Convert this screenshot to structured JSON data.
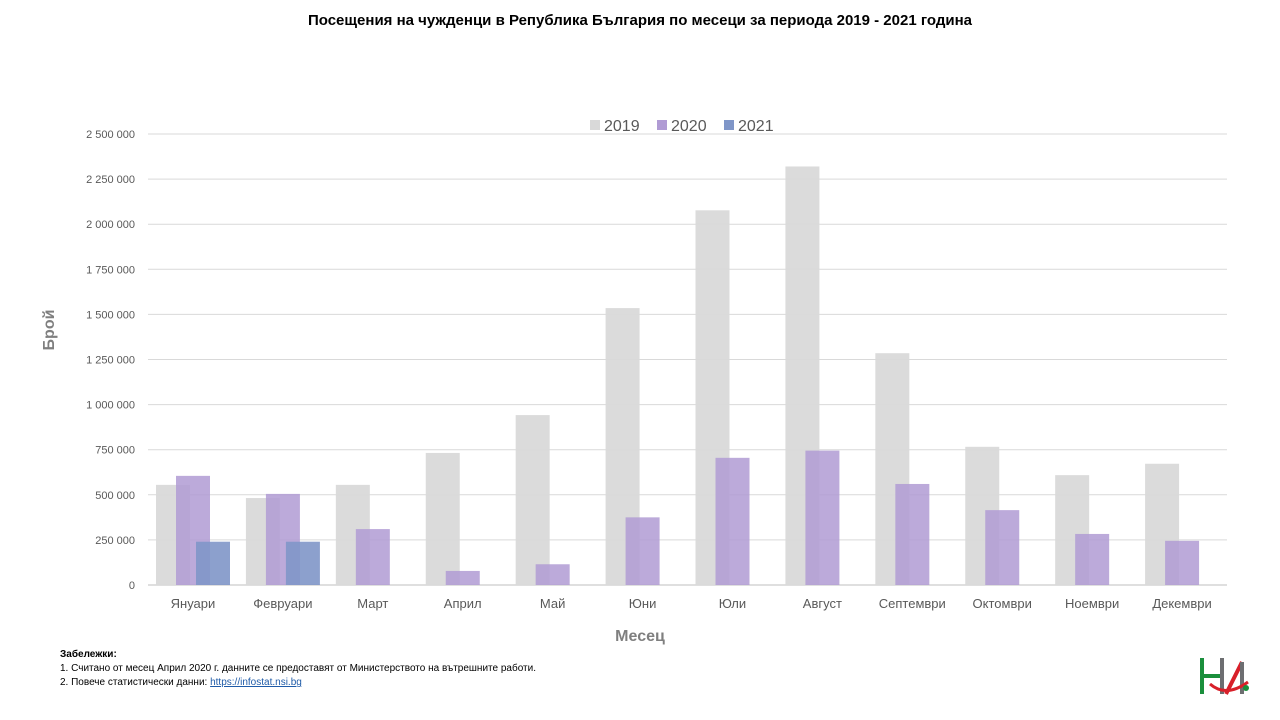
{
  "chart_data": {
    "type": "bar",
    "title": "Посещения на чужденци в Република България по месеци за периода 2019 - 2021 година",
    "xlabel": "Месец",
    "ylabel": "Брой",
    "ylim": [
      0,
      2500000
    ],
    "yticks": [
      0,
      250000,
      500000,
      750000,
      1000000,
      1250000,
      1500000,
      1750000,
      2000000,
      2250000,
      2500000
    ],
    "ytick_labels": [
      "0",
      "250 000",
      "500 000",
      "750 000",
      "1 000 000",
      "1 250 000",
      "1 500 000",
      "1 750 000",
      "2 000 000",
      "2 250 000",
      "2 500 000"
    ],
    "grid": true,
    "legend_position": "top-center",
    "categories": [
      "Януари",
      "Февруари",
      "Март",
      "Април",
      "Май",
      "Юни",
      "Юли",
      "Август",
      "Септември",
      "Октомври",
      "Ноември",
      "Декември"
    ],
    "series": [
      {
        "name": "2019",
        "color": "#d9d9d9",
        "values": [
          555000,
          482000,
          555000,
          732000,
          942000,
          1535000,
          2077000,
          2320000,
          1285000,
          766000,
          609000,
          672000
        ]
      },
      {
        "name": "2020",
        "color": "#b09bd4",
        "values": [
          605000,
          505000,
          310000,
          78000,
          115000,
          375000,
          705000,
          745000,
          560000,
          415000,
          283000,
          245000
        ]
      },
      {
        "name": "2021",
        "color": "#7f96c8",
        "values": [
          240000,
          240000,
          null,
          null,
          null,
          null,
          null,
          null,
          null,
          null,
          null,
          null
        ]
      }
    ]
  },
  "notes": {
    "heading": "Забележки:",
    "line1": "1. Считано от месец Април  2020 г. данните се предоставят от Министерството на  вътрешните работи.",
    "line2_prefix": "2. Повече статистически данни: ",
    "line2_link": "https://infostat.nsi.bg"
  },
  "logo": {
    "colors": {
      "green": "#1a8f3c",
      "red": "#d8202a",
      "gray": "#6d6e71"
    }
  }
}
